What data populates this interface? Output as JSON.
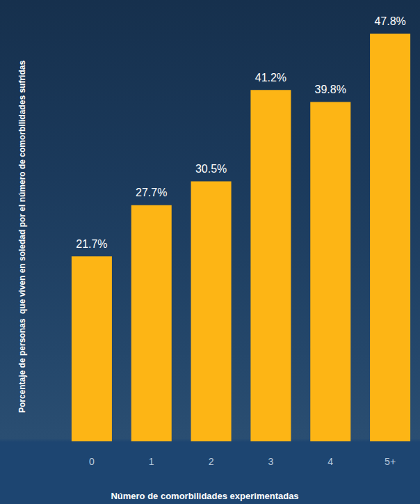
{
  "chart_data": {
    "type": "bar",
    "categories": [
      "0",
      "1",
      "2",
      "3",
      "4",
      "5+"
    ],
    "values": [
      21.7,
      27.7,
      30.5,
      41.2,
      39.8,
      47.8
    ],
    "value_labels": [
      "21.7%",
      "27.7%",
      "30.5%",
      "41.2%",
      "39.8%",
      "47.8%"
    ],
    "color": "#fdb515",
    "x_label": "Número de comorbilidades experimentadas",
    "y_label": "Porcentaje de personas  que viven en soledad por el número de comorbilidades sufridas",
    "ylim": [
      0,
      48
    ],
    "grid": false,
    "data_labels": true,
    "tick_labels": "x"
  }
}
